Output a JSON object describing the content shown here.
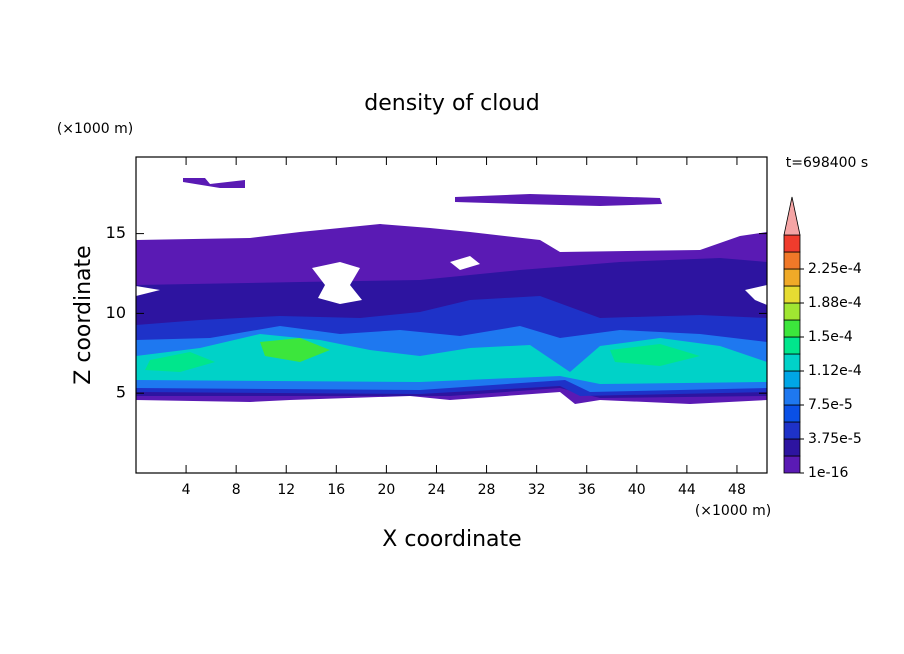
{
  "chart_data": {
    "type": "contour",
    "title": "density of cloud",
    "subtitle": "t=698400 s",
    "x_label": "X coordinate",
    "y_label": "Z coordinate",
    "x_unit": "(×1000 m)",
    "y_unit": "(×1000 m)",
    "xlim": [
      0,
      50.4
    ],
    "ylim": [
      0,
      19.8
    ],
    "xticks": [
      4,
      8,
      12,
      16,
      20,
      24,
      28,
      32,
      36,
      40,
      44,
      48
    ],
    "yticks": [
      5,
      10,
      15
    ],
    "colorbar": {
      "levels": [
        1e-16,
        1.875e-05,
        3.75e-05,
        5.625e-05,
        7.5e-05,
        9.375e-05,
        0.0001125,
        0.00013125,
        0.00015,
        0.00016875,
        0.0001875,
        0.00020625,
        0.000225,
        0.00024375
      ],
      "colors": [
        "#5a1ab4",
        "#2d14a0",
        "#1e32c8",
        "#0a50e6",
        "#1e78f0",
        "#00a6e6",
        "#00d2c8",
        "#00e68c",
        "#3ce63c",
        "#a0e632",
        "#e6dc32",
        "#f0aa28",
        "#f07828",
        "#f03c2d"
      ],
      "over_color": "#f5a5a5",
      "ticks": [
        {
          "value": 1e-16,
          "label": "1e-16"
        },
        {
          "value": 3.75e-05,
          "label": "3.75e-5"
        },
        {
          "value": 7.5e-05,
          "label": "7.5e-5"
        },
        {
          "value": 0.0001125,
          "label": "1.12e-4"
        },
        {
          "value": 0.00015,
          "label": "1.5e-4"
        },
        {
          "value": 0.0001875,
          "label": "1.88e-4"
        },
        {
          "value": 0.000225,
          "label": "2.25e-4"
        }
      ]
    }
  }
}
